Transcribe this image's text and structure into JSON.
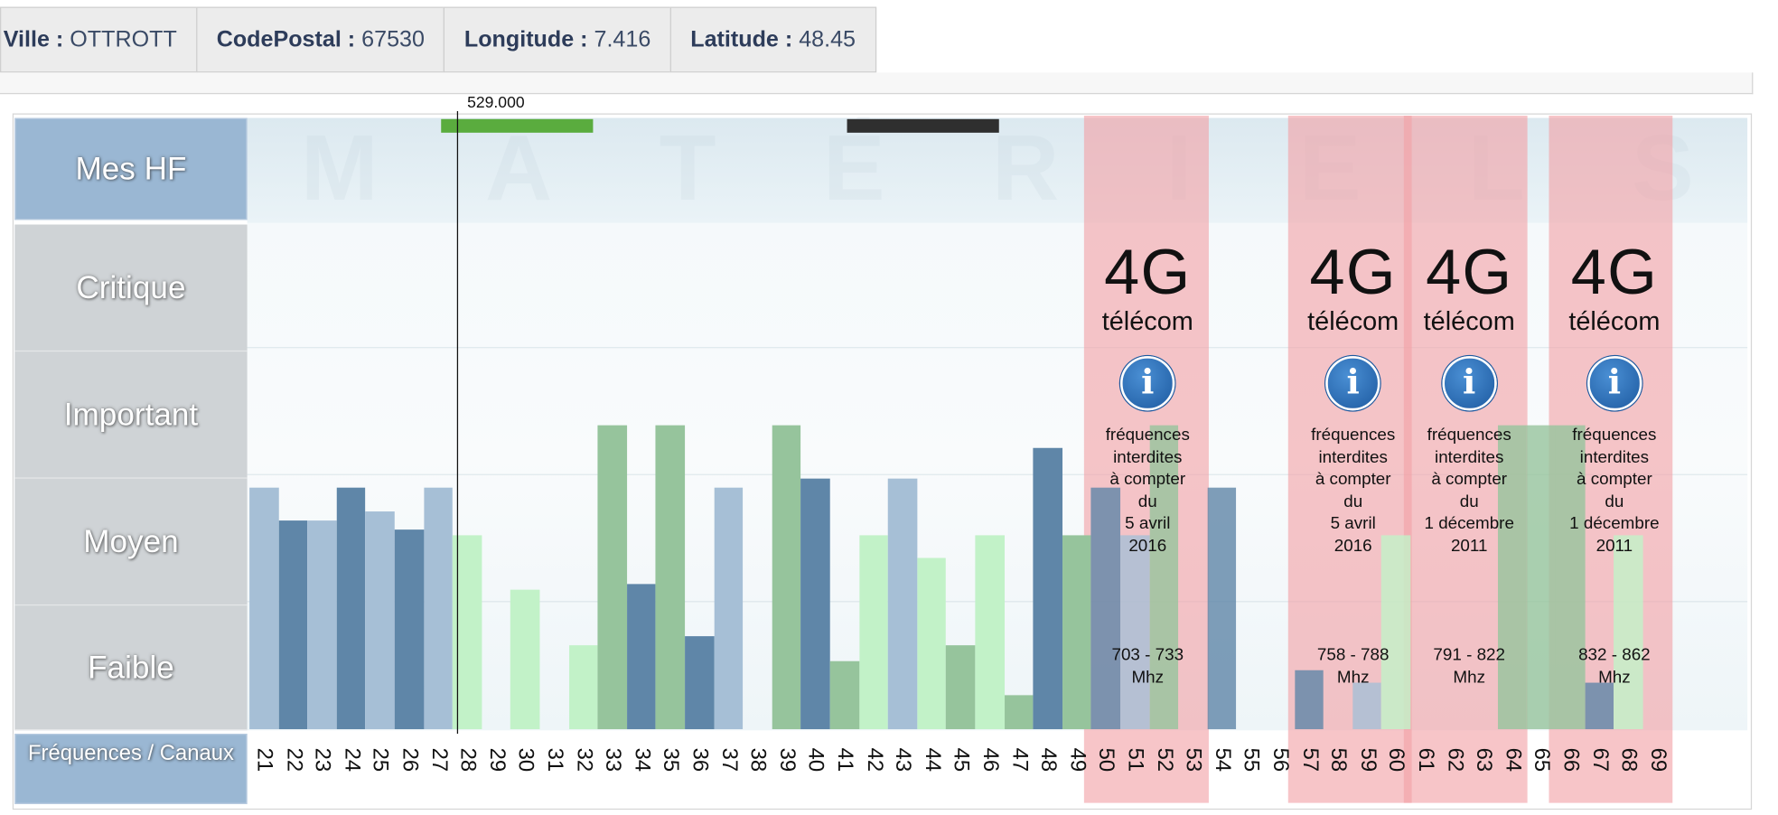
{
  "info": [
    {
      "key": "Ville :",
      "value": "OTTROTT"
    },
    {
      "key": "CodePostal :",
      "value": "67530"
    },
    {
      "key": "Longitude :",
      "value": "7.416"
    },
    {
      "key": "Latitude :",
      "value": "48.45"
    }
  ],
  "row_labels": {
    "mes_hf": "Mes HF",
    "critique": "Critique",
    "important": "Important",
    "moyen": "Moyen",
    "faible": "Faible",
    "frequences": "Fréquences / Canaux"
  },
  "cursor_value": "529.000",
  "watermark_top": [
    "M",
    "A",
    "T",
    "É",
    "R",
    "I",
    "E",
    "L",
    "S"
  ],
  "colors": {
    "blue_dark": "#5f86a8",
    "blue_light": "#a6bfd6",
    "green_mid": "#96c49c",
    "green_light": "#c2f2c8",
    "zone_red": "#f2a1a6",
    "mark_green": "#5aac3e",
    "mark_dark": "#2f2f2f"
  },
  "chart_data": {
    "type": "bar",
    "level_scale": {
      "Faible": [
        0,
        1
      ],
      "Moyen": [
        1,
        2
      ],
      "Important": [
        2,
        3
      ],
      "Critique": [
        3,
        4
      ]
    },
    "channels": [
      21,
      22,
      23,
      24,
      25,
      26,
      27,
      28,
      29,
      30,
      31,
      32,
      33,
      34,
      35,
      36,
      37,
      38,
      39,
      40,
      41,
      42,
      43,
      44,
      45,
      46,
      47,
      48,
      49,
      50,
      51,
      52,
      53,
      54,
      55,
      56,
      57,
      58,
      59,
      60,
      61,
      62,
      63,
      64,
      65,
      66,
      67,
      68,
      69
    ],
    "bars": [
      {
        "channel": 21,
        "value": 1.9,
        "color": "blue_light"
      },
      {
        "channel": 22,
        "value": 1.64,
        "color": "blue_dark"
      },
      {
        "channel": 23,
        "value": 1.64,
        "color": "blue_light"
      },
      {
        "channel": 24,
        "value": 1.9,
        "color": "blue_dark"
      },
      {
        "channel": 25,
        "value": 1.71,
        "color": "blue_light"
      },
      {
        "channel": 26,
        "value": 1.57,
        "color": "blue_dark"
      },
      {
        "channel": 27,
        "value": 1.9,
        "color": "blue_light"
      },
      {
        "channel": 28,
        "value": 1.53,
        "color": "green_light"
      },
      {
        "channel": 30,
        "value": 1.1,
        "color": "green_light"
      },
      {
        "channel": 32,
        "value": 0.66,
        "color": "green_light"
      },
      {
        "channel": 33,
        "value": 2.39,
        "color": "green_mid"
      },
      {
        "channel": 34,
        "value": 1.14,
        "color": "blue_dark"
      },
      {
        "channel": 35,
        "value": 2.39,
        "color": "green_mid"
      },
      {
        "channel": 36,
        "value": 0.73,
        "color": "blue_dark"
      },
      {
        "channel": 37,
        "value": 1.9,
        "color": "blue_light"
      },
      {
        "channel": 39,
        "value": 2.39,
        "color": "green_mid"
      },
      {
        "channel": 40,
        "value": 1.97,
        "color": "blue_dark"
      },
      {
        "channel": 41,
        "value": 0.54,
        "color": "green_mid"
      },
      {
        "channel": 42,
        "value": 1.53,
        "color": "green_light"
      },
      {
        "channel": 43,
        "value": 1.97,
        "color": "blue_light"
      },
      {
        "channel": 44,
        "value": 1.35,
        "color": "green_light"
      },
      {
        "channel": 45,
        "value": 0.66,
        "color": "green_mid"
      },
      {
        "channel": 46,
        "value": 1.53,
        "color": "green_light"
      },
      {
        "channel": 47,
        "value": 0.27,
        "color": "green_mid"
      },
      {
        "channel": 48,
        "value": 2.21,
        "color": "blue_dark"
      },
      {
        "channel": 49,
        "value": 1.53,
        "color": "green_mid"
      },
      {
        "channel": 50,
        "value": 1.9,
        "color": "blue_dark"
      },
      {
        "channel": 51,
        "value": 1.53,
        "color": "blue_light"
      },
      {
        "channel": 52,
        "value": 2.39,
        "color": "green_mid"
      },
      {
        "channel": 54,
        "value": 1.9,
        "color": "blue_dark"
      },
      {
        "channel": 57,
        "value": 0.46,
        "color": "blue_dark"
      },
      {
        "channel": 59,
        "value": 0.37,
        "color": "blue_light"
      },
      {
        "channel": 60,
        "value": 1.53,
        "color": "green_light"
      },
      {
        "channel": 64,
        "value": 2.39,
        "color": "green_mid"
      },
      {
        "channel": 65,
        "value": 2.39,
        "color": "green_mid"
      },
      {
        "channel": 66,
        "value": 2.39,
        "color": "green_mid"
      },
      {
        "channel": 67,
        "value": 0.37,
        "color": "blue_dark"
      },
      {
        "channel": 68,
        "value": 1.53,
        "color": "green_light"
      }
    ],
    "mes_hf_ranges": [
      {
        "from_channel": 27,
        "to_channel": 32,
        "color": "mark_green"
      },
      {
        "from_channel": 41,
        "to_channel": 46,
        "color": "mark_dark"
      }
    ],
    "cursor_channel": 28,
    "zones": [
      {
        "from": 50,
        "to": 53,
        "title": "4G",
        "subtitle": "télécom",
        "text": [
          "fréquences",
          "interdites",
          "à compter",
          "du",
          "5 avril",
          "2016"
        ],
        "freq": [
          "703 - 733",
          "Mhz"
        ]
      },
      {
        "from": 57,
        "to": 60,
        "title": "4G",
        "subtitle": "télécom",
        "text": [
          "fréquences",
          "interdites",
          "à compter",
          "du",
          "5 avril",
          "2016"
        ],
        "freq": [
          "758 - 788",
          "Mhz"
        ]
      },
      {
        "from": 61,
        "to": 64,
        "title": "4G",
        "subtitle": "télécom",
        "text": [
          "fréquences",
          "interdites",
          "à compter",
          "du",
          "1 décembre",
          "2011"
        ],
        "freq": [
          "791 - 822",
          "Mhz"
        ]
      },
      {
        "from": 66,
        "to": 69,
        "title": "4G",
        "subtitle": "télécom",
        "text": [
          "fréquences",
          "interdites",
          "à compter",
          "du",
          "1 décembre",
          "2011"
        ],
        "freq": [
          "832 - 862",
          "Mhz"
        ]
      }
    ]
  }
}
